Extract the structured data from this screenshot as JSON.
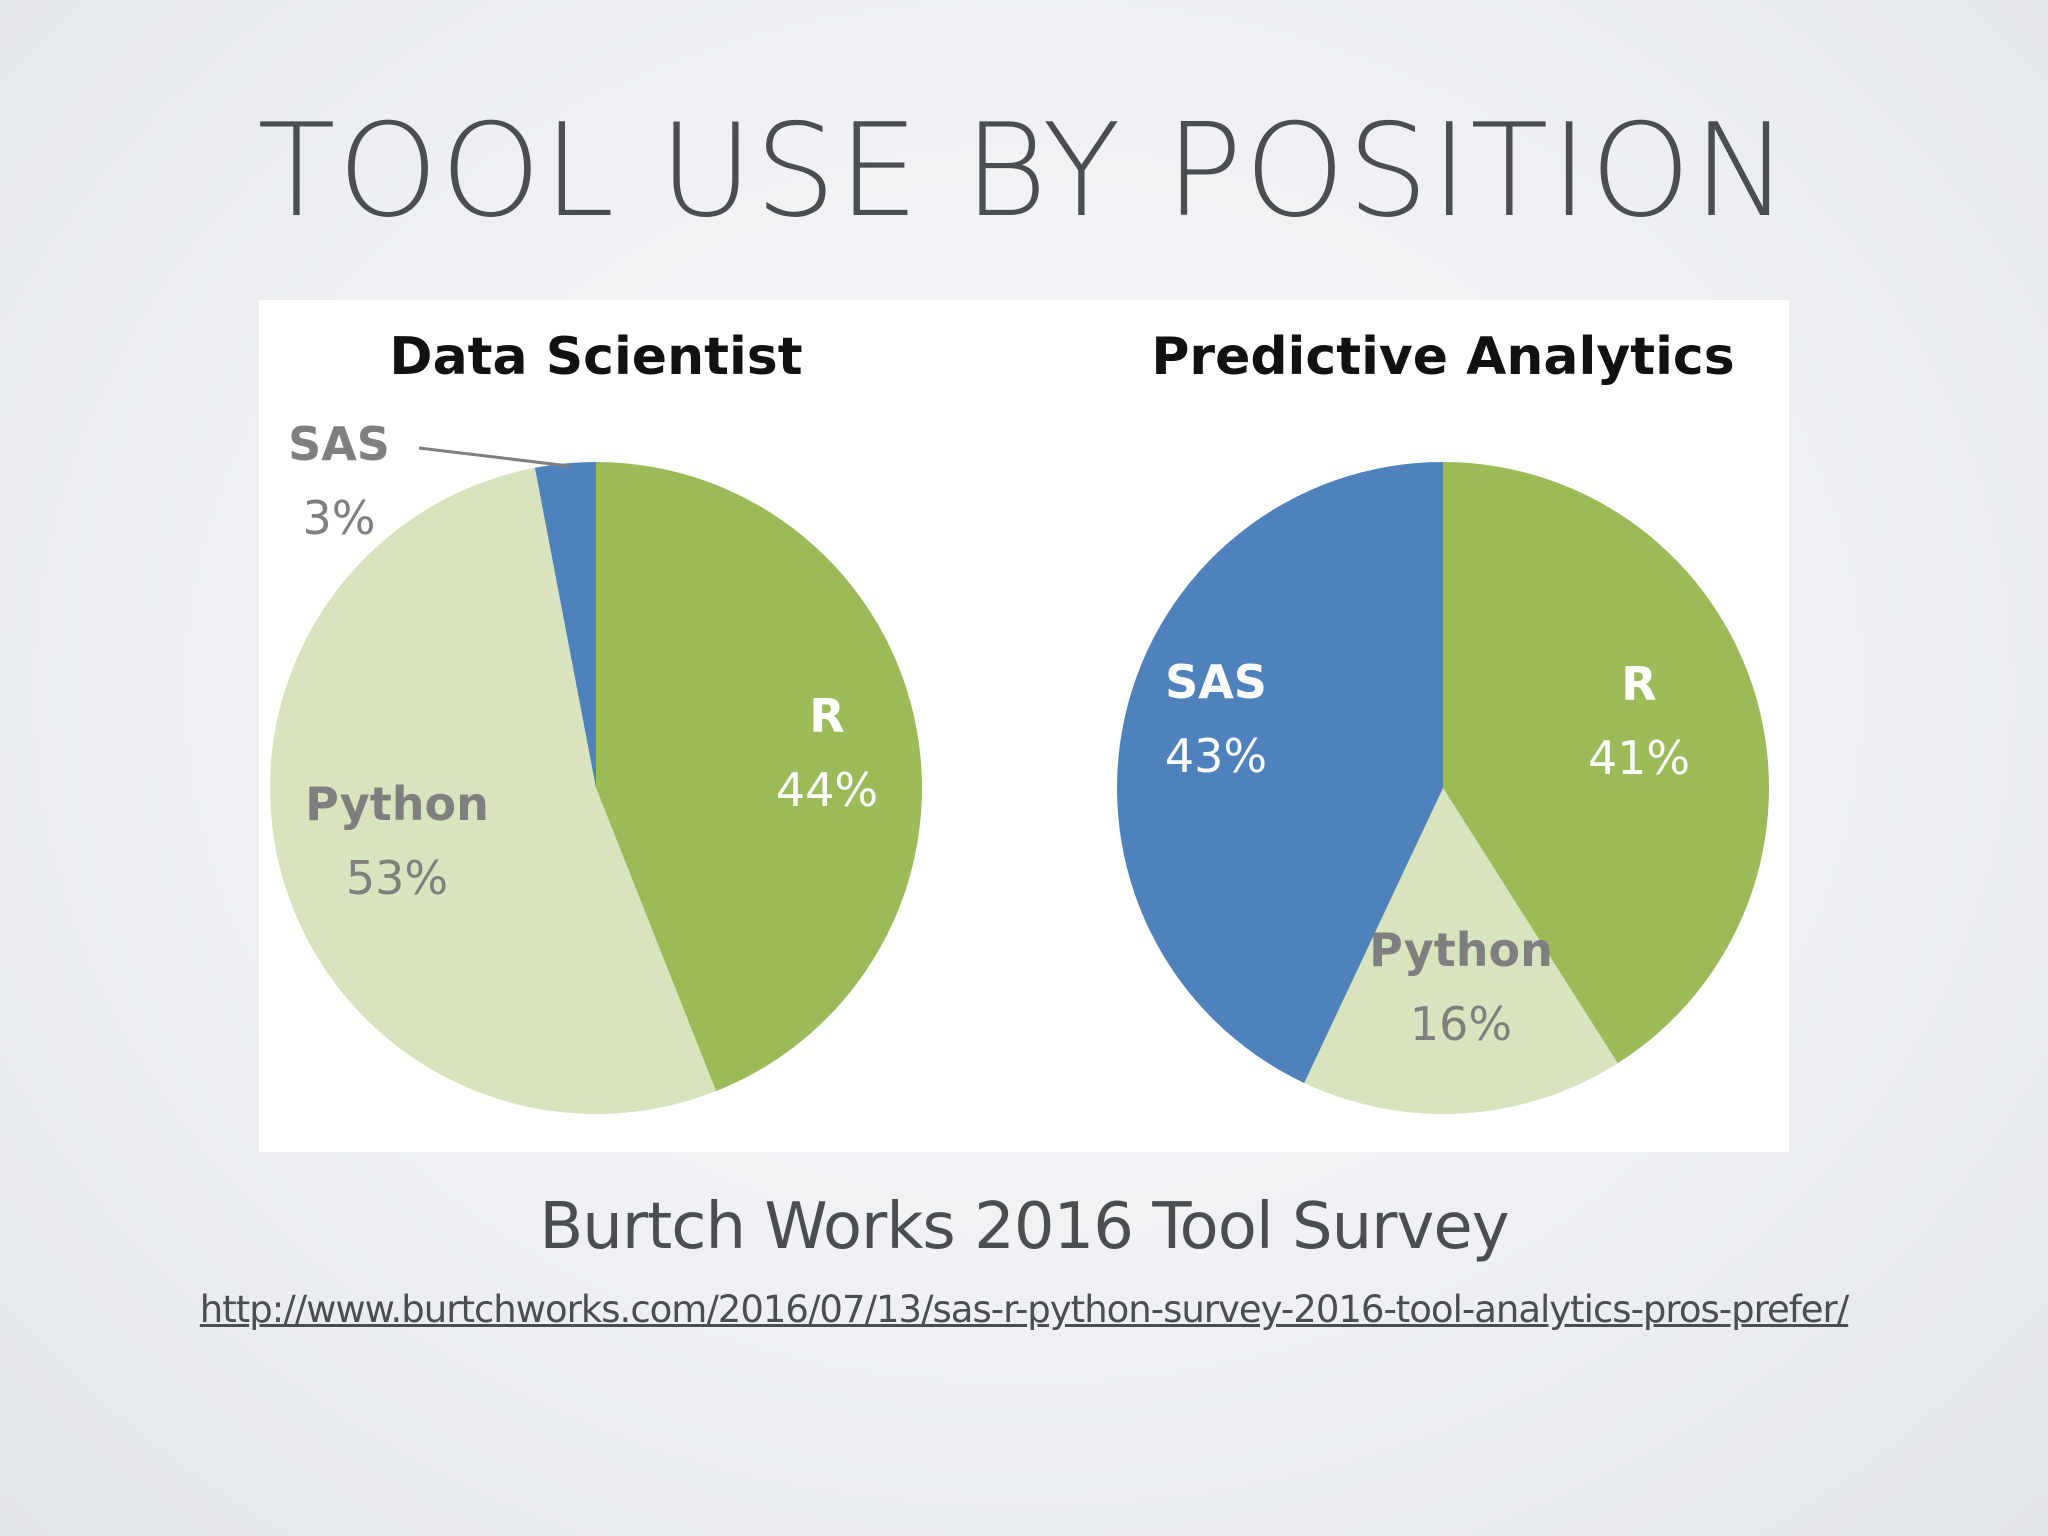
{
  "slide": {
    "title": "TOOL USE BY POSITION",
    "caption": "Burtch Works 2016 Tool Survey",
    "source_url": "http://www.burtchworks.com/2016/07/13/sas-r-python-survey-2016-tool-analytics-pros-prefer/"
  },
  "colors": {
    "R": "#9bbb59",
    "Python": "#d7e4bd",
    "SAS": "#4f81bd",
    "label_dark": "#7f7f7f",
    "label_light": "#ffffff"
  },
  "chart_data": [
    {
      "type": "pie",
      "title": "Data Scientist",
      "slices": [
        {
          "label": "R",
          "value": 44,
          "value_label": "44%"
        },
        {
          "label": "Python",
          "value": 53,
          "value_label": "53%"
        },
        {
          "label": "SAS",
          "value": 3,
          "value_label": "3%"
        }
      ]
    },
    {
      "type": "pie",
      "title": "Predictive Analytics",
      "slices": [
        {
          "label": "R",
          "value": 41,
          "value_label": "41%"
        },
        {
          "label": "Python",
          "value": 16,
          "value_label": "16%"
        },
        {
          "label": "SAS",
          "value": 43,
          "value_label": "43%"
        }
      ]
    }
  ]
}
